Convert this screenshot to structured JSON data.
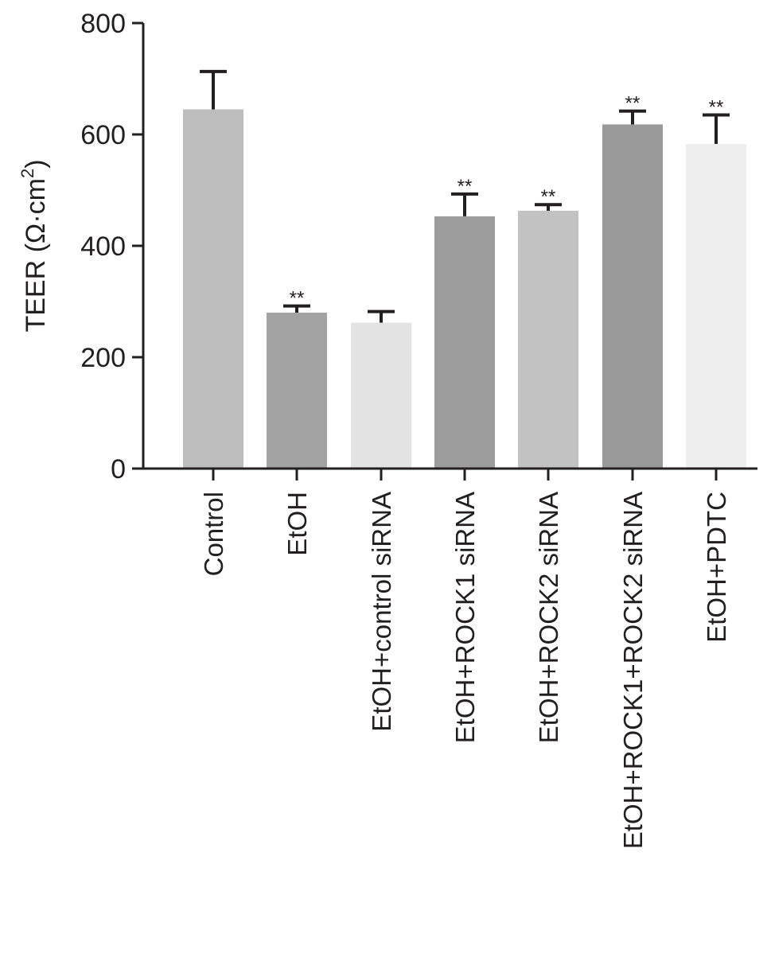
{
  "chart_data": {
    "type": "bar",
    "title": "",
    "xlabel": "",
    "ylabel": "TEER (Ω·cm",
    "ylabel_sup": "2",
    "ylabel_close": ")",
    "ylim": [
      0,
      800
    ],
    "yticks": [
      0,
      200,
      400,
      600,
      800
    ],
    "ytick_labels": [
      "0",
      "200",
      "400",
      "600",
      "800"
    ],
    "grid": false,
    "legend": "none",
    "categories": [
      "Control",
      "EtOH",
      "EtOH+control siRNA",
      "EtOH+ROCK1 siRNA",
      "EtOH+ROCK2 siRNA",
      "EtOH+ROCK1+ROCK2 siRNA",
      "EtOH+PDTC"
    ],
    "values": [
      645,
      280,
      262,
      453,
      463,
      618,
      583
    ],
    "errors": [
      68,
      12,
      20,
      40,
      11,
      24,
      52
    ],
    "significance": [
      "",
      "**",
      "",
      "**",
      "**",
      "**",
      "**"
    ],
    "colors": [
      "#bdbdbd",
      "#a3a3a3",
      "#e3e3e3",
      "#9c9c9c",
      "#c2c2c2",
      "#999999",
      "#eeeeee"
    ]
  }
}
